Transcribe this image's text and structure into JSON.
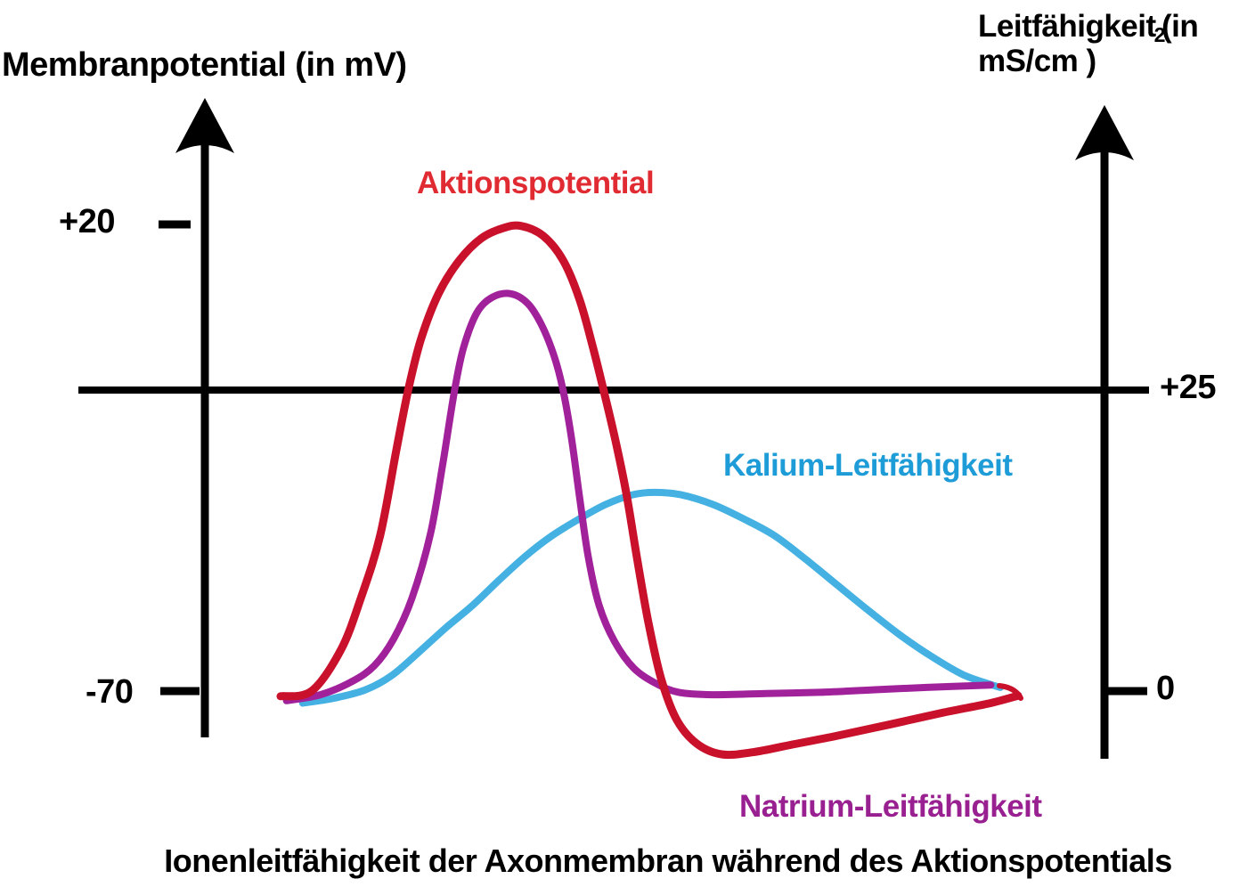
{
  "chart_data": {
    "type": "line",
    "title": "Ionenleitfähigkeit der Axonmembran während des Aktionspotentials",
    "x_axis": {
      "label": "",
      "note": "no x-axis scale shown; points use normalized time t 0-100",
      "range": [
        0,
        100
      ]
    },
    "axes": {
      "left": {
        "label": "Membranpotential (in mV)",
        "unit": "mV",
        "ticks": [
          {
            "label": "+20",
            "value": 20
          },
          {
            "label": "-70",
            "value": -70
          }
        ]
      },
      "right": {
        "label_line1_pre": "Leitfähigkeit",
        "label_subscript": "2",
        "label_line1_post": "(in",
        "label_line2": "mS/cm )",
        "unit": "mS/cm2",
        "ticks": [
          {
            "label": "+25",
            "value": 25
          },
          {
            "label": "0",
            "value": 0
          }
        ]
      }
    },
    "grid": false,
    "legend_position": "inline labels beside curves",
    "series": [
      {
        "name": "Kalium-Leitfähigkeit",
        "axis": "right",
        "unit": "mS/cm2",
        "color": "#45b1e2",
        "label_color": "#1e9cd7",
        "peak_value": 16.5,
        "points": [
          [
            3,
            -1
          ],
          [
            7.2,
            -0.6
          ],
          [
            11.5,
            0.1
          ],
          [
            15.1,
            1.3
          ],
          [
            18.7,
            3.2
          ],
          [
            22.3,
            5.2
          ],
          [
            26,
            7.1
          ],
          [
            29.6,
            9.2
          ],
          [
            33.2,
            11.2
          ],
          [
            36.8,
            12.9
          ],
          [
            40.5,
            14.3
          ],
          [
            44.1,
            15.5
          ],
          [
            47.7,
            16.3
          ],
          [
            50.7,
            16.5
          ],
          [
            54.3,
            16.3
          ],
          [
            58.6,
            15.5
          ],
          [
            62.8,
            14.3
          ],
          [
            67,
            12.9
          ],
          [
            71.3,
            10.9
          ],
          [
            75.5,
            8.8
          ],
          [
            79.7,
            6.7
          ],
          [
            83.9,
            4.7
          ],
          [
            88.2,
            2.9
          ],
          [
            92.4,
            1.4
          ],
          [
            96,
            0.6
          ],
          [
            97.6,
            0.3
          ]
        ]
      },
      {
        "name": "Natrium-Leitfähigkeit",
        "axis": "right",
        "unit": "mS/cm2",
        "color": "#a1219a",
        "label_color": "#992090",
        "peak_value": 33,
        "points": [
          [
            0.8,
            -0.8
          ],
          [
            5.4,
            -0.3
          ],
          [
            9.7,
            0.8
          ],
          [
            12.7,
            2.1
          ],
          [
            15.3,
            4.3
          ],
          [
            17.8,
            7.7
          ],
          [
            20.3,
            13
          ],
          [
            22,
            18.9
          ],
          [
            23.6,
            25
          ],
          [
            24.8,
            28.5
          ],
          [
            26.6,
            31.4
          ],
          [
            28.7,
            32.7
          ],
          [
            31.2,
            33
          ],
          [
            33.5,
            32.2
          ],
          [
            35.4,
            30.4
          ],
          [
            37.1,
            27.8
          ],
          [
            38.3,
            25
          ],
          [
            39.4,
            21.2
          ],
          [
            40.5,
            16.3
          ],
          [
            41.7,
            11.2
          ],
          [
            43.2,
            7.1
          ],
          [
            45.3,
            4.1
          ],
          [
            47.9,
            1.9
          ],
          [
            51,
            0.6
          ],
          [
            54,
            -0.1
          ],
          [
            58.6,
            -0.3
          ],
          [
            65.8,
            -0.2
          ],
          [
            73.1,
            -0.1
          ],
          [
            80.3,
            0.1
          ],
          [
            87.6,
            0.3
          ],
          [
            96.3,
            0.5
          ]
        ]
      },
      {
        "name": "Aktionspotential",
        "axis": "left",
        "unit": "mV",
        "peak_value": 20,
        "resting_value": -70,
        "undershoot_value": -82,
        "color": "#c9112b",
        "label_color": "#e12b33",
        "points": [
          [
            0,
            -71
          ],
          [
            4.2,
            -70
          ],
          [
            8.2,
            -62
          ],
          [
            10.9,
            -52
          ],
          [
            13.5,
            -40
          ],
          [
            15.7,
            -23.5
          ],
          [
            17.3,
            -12
          ],
          [
            19,
            -2.3
          ],
          [
            21.4,
            6.6
          ],
          [
            24.2,
            13
          ],
          [
            27.2,
            17.3
          ],
          [
            30.2,
            19.3
          ],
          [
            32.6,
            19.7
          ],
          [
            35.6,
            17.8
          ],
          [
            38.3,
            13.1
          ],
          [
            40.5,
            5.7
          ],
          [
            42.3,
            -3.4
          ],
          [
            43.8,
            -12
          ],
          [
            45.3,
            -21
          ],
          [
            46.9,
            -32
          ],
          [
            48.4,
            -45
          ],
          [
            49.9,
            -57
          ],
          [
            51.6,
            -67.6
          ],
          [
            53.7,
            -75.5
          ],
          [
            56.4,
            -80.1
          ],
          [
            59.8,
            -82.2
          ],
          [
            64,
            -81.8
          ],
          [
            69.4,
            -80.3
          ],
          [
            75.5,
            -78.6
          ],
          [
            82.7,
            -76.4
          ],
          [
            90,
            -74.1
          ],
          [
            96,
            -72.4
          ],
          [
            100,
            -70.9
          ]
        ]
      }
    ]
  },
  "colors": {
    "background": "#ffffff",
    "axis": "#000000",
    "text": "#000000"
  }
}
